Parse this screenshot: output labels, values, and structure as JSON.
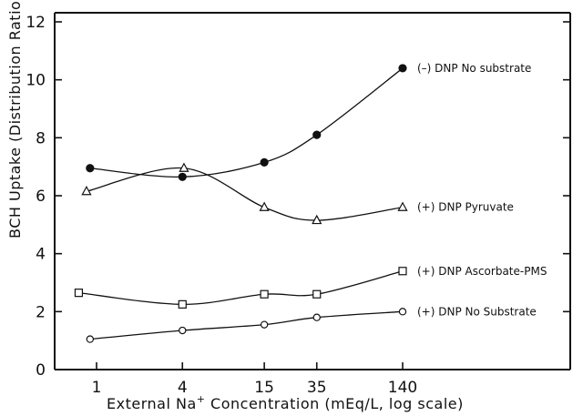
{
  "chart_data": {
    "type": "line",
    "xlabel_parts": [
      "External Na",
      "+",
      " Concentration  (mEq/L, log scale)"
    ],
    "ylabel": "BCH Uptake  (Distribution Ratio)",
    "x_scale": "log",
    "x_ticks": [
      {
        "value": 1,
        "label": "1"
      },
      {
        "value": 4,
        "label": "4"
      },
      {
        "value": 15,
        "label": "15"
      },
      {
        "value": 35,
        "label": "35"
      },
      {
        "value": 140,
        "label": "140"
      }
    ],
    "ylim": [
      0,
      12
    ],
    "y_ticks": [
      0,
      2,
      4,
      6,
      8,
      10,
      12
    ],
    "grid": false,
    "series": [
      {
        "name": "(–) DNP  No substrate",
        "marker": "filled-circle",
        "x": [
          0.9,
          4,
          15,
          35,
          140
        ],
        "y": [
          6.95,
          6.65,
          7.15,
          8.1,
          10.4
        ]
      },
      {
        "name": "(+) DNP  Pyruvate",
        "marker": "open-triangle",
        "x": [
          0.85,
          4.1,
          15,
          35,
          140
        ],
        "y": [
          6.15,
          6.95,
          5.6,
          5.15,
          5.6
        ]
      },
      {
        "name": "(+) DNP  Ascorbate-PMS",
        "marker": "open-square",
        "x": [
          0.75,
          4,
          15,
          35,
          140
        ],
        "y": [
          2.65,
          2.25,
          2.6,
          2.6,
          3.4
        ]
      },
      {
        "name": "(+) DNP  No Substrate",
        "marker": "open-circle",
        "x": [
          0.9,
          4,
          15,
          35,
          140
        ],
        "y": [
          1.05,
          1.35,
          1.55,
          1.8,
          2.0
        ]
      }
    ]
  }
}
